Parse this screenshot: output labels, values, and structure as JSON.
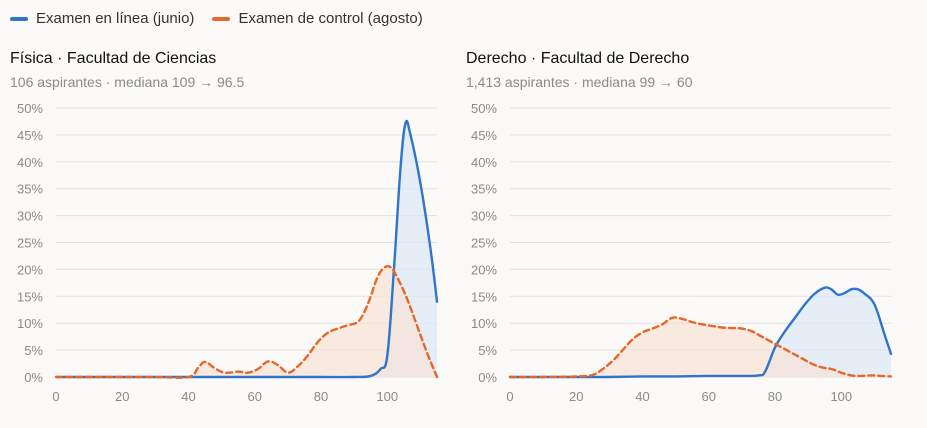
{
  "legend": {
    "items": [
      {
        "label": "Examen en línea (junio)",
        "color": "#2f75cc"
      },
      {
        "label": "Examen de control (agosto)",
        "color": "#e5682a"
      }
    ]
  },
  "colors": {
    "series_online": "#2f75cc",
    "series_control": "#e5682a",
    "fill_online": "#dce7f6",
    "fill_control": "#f9e1d4",
    "grid": "#e2e2e2",
    "tick_label": "#8a8a8a"
  },
  "panels": [
    {
      "title": "Física · Facultad de Ciencias",
      "subtitle": "106 aspirantes · mediana 109 → 96.5"
    },
    {
      "title": "Derecho · Facultad de Derecho",
      "subtitle": "1,413 aspirantes · mediana 99 → 60"
    }
  ],
  "chart_data": [
    {
      "type": "area",
      "title": "Física · Facultad de Ciencias",
      "subtitle": "106 aspirantes · mediana 109 → 96.5",
      "xlabel": "",
      "ylabel": "",
      "xlim": [
        0,
        115
      ],
      "ylim": [
        0,
        50
      ],
      "x_ticks": [
        0,
        20,
        40,
        60,
        80,
        100
      ],
      "x_tick_labels": [
        "0",
        "20",
        "40",
        "60",
        "80",
        "100"
      ],
      "y_ticks": [
        0,
        5,
        10,
        15,
        20,
        25,
        30,
        35,
        40,
        45,
        50
      ],
      "y_tick_labels": [
        "0%",
        "5%",
        "10%",
        "15%",
        "20%",
        "25%",
        "30%",
        "35%",
        "40%",
        "45%",
        "50%"
      ],
      "grid": true,
      "series": [
        {
          "name": "Examen en línea (junio)",
          "line_style": "solid",
          "x": [
            0,
            10,
            20,
            30,
            40,
            50,
            60,
            70,
            80,
            90,
            95,
            98,
            100,
            102,
            104,
            105.5,
            107,
            110,
            113,
            115
          ],
          "y": [
            0,
            0,
            0,
            0,
            0,
            0,
            0,
            0,
            0,
            0,
            0.2,
            1.5,
            4,
            20,
            39,
            47.2,
            45,
            36,
            24,
            14
          ]
        },
        {
          "name": "Examen de control (agosto)",
          "line_style": "dashed",
          "x": [
            0,
            10,
            20,
            30,
            40,
            43,
            45,
            48,
            51,
            55,
            58,
            61,
            64,
            67,
            70,
            73,
            76,
            79,
            82,
            85,
            88,
            91,
            93,
            95,
            97,
            99,
            101,
            103,
            106,
            109,
            112,
            115
          ],
          "y": [
            0,
            0,
            0,
            0,
            0,
            1.8,
            2.8,
            1.6,
            0.8,
            1,
            0.8,
            1.5,
            2.9,
            2.2,
            0.8,
            2,
            4,
            6.5,
            8.2,
            9,
            9.6,
            10.2,
            12,
            15,
            18.5,
            20.3,
            20.4,
            18.5,
            14.5,
            9.5,
            4.5,
            0
          ]
        }
      ]
    },
    {
      "type": "area",
      "title": "Derecho · Facultad de Derecho",
      "subtitle": "1,413 aspirantes · mediana 99 → 60",
      "xlabel": "",
      "ylabel": "",
      "xlim": [
        0,
        115
      ],
      "ylim": [
        0,
        50
      ],
      "x_ticks": [
        0,
        20,
        40,
        60,
        80,
        100
      ],
      "x_tick_labels": [
        "0",
        "20",
        "40",
        "60",
        "80",
        "100"
      ],
      "y_ticks": [
        0,
        5,
        10,
        15,
        20,
        25,
        30,
        35,
        40,
        45,
        50
      ],
      "y_tick_labels": [
        "0%",
        "5%",
        "10%",
        "15%",
        "20%",
        "25%",
        "30%",
        "35%",
        "40%",
        "45%",
        "50%"
      ],
      "grid": true,
      "series": [
        {
          "name": "Examen en línea (junio)",
          "line_style": "solid",
          "x": [
            0,
            10,
            20,
            30,
            40,
            50,
            60,
            70,
            75,
            77,
            80,
            83,
            86,
            89,
            92,
            95,
            97,
            99,
            101,
            103,
            105,
            107,
            110,
            113,
            115
          ],
          "y": [
            0,
            0,
            0,
            0,
            0.1,
            0.1,
            0.2,
            0.2,
            0.3,
            1,
            5.5,
            8.5,
            11,
            13.5,
            15.5,
            16.6,
            16.3,
            15.3,
            15.6,
            16.3,
            16.3,
            15.5,
            13.5,
            8,
            4.3
          ]
        },
        {
          "name": "Examen de control (agosto)",
          "line_style": "dashed",
          "x": [
            0,
            10,
            20,
            25,
            28,
            31,
            34,
            37,
            40,
            43,
            46,
            49,
            52,
            55,
            58,
            61,
            64,
            67,
            70,
            73,
            76,
            79,
            82,
            85,
            88,
            91,
            94,
            97,
            100,
            103,
            106,
            109,
            112,
            115
          ],
          "y": [
            0,
            0,
            0.1,
            0.4,
            1.5,
            3,
            5,
            7,
            8.3,
            9,
            9.8,
            11,
            10.8,
            10.2,
            9.8,
            9.5,
            9.2,
            9.1,
            9,
            8.5,
            7.5,
            6.5,
            5.5,
            4.5,
            3.5,
            2.5,
            1.8,
            1.5,
            0.8,
            0.3,
            0.2,
            0.3,
            0.2,
            0.1
          ]
        }
      ]
    }
  ]
}
